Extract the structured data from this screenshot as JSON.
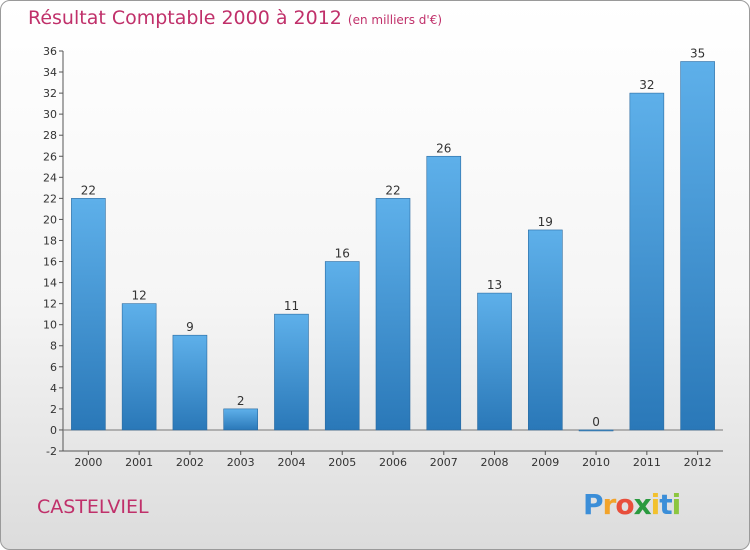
{
  "chart_data": {
    "type": "bar",
    "title": "Résultat Comptable 2000 à 2012",
    "subtitle": "(en milliers d'€)",
    "categories": [
      "2000",
      "2001",
      "2002",
      "2003",
      "2004",
      "2005",
      "2006",
      "2007",
      "2008",
      "2009",
      "2010",
      "2011",
      "2012"
    ],
    "values": [
      22,
      12,
      9,
      2,
      11,
      16,
      22,
      26,
      13,
      19,
      0,
      32,
      35
    ],
    "value_labels": [
      "22",
      "12",
      "9",
      "2",
      "11",
      "16",
      "22",
      "26",
      "13",
      "19",
      "0",
      "32",
      "35"
    ],
    "xlabel": "",
    "ylabel": "",
    "ylim": [
      -2,
      36
    ],
    "yticks": [
      -2,
      0,
      2,
      4,
      6,
      8,
      10,
      12,
      14,
      16,
      18,
      20,
      22,
      24,
      26,
      28,
      30,
      32,
      34,
      36
    ],
    "grid": false,
    "bar_color": "#3a8fd4"
  },
  "place_name": "CASTELVIEL",
  "logo": {
    "letters": [
      "P",
      "r",
      "o",
      "x",
      "i",
      "t",
      "i"
    ],
    "colors": [
      "#3b8ed8",
      "#f2a32a",
      "#e84e3b",
      "#2a9a3f",
      "#f2c12e",
      "#3b8ed8",
      "#8cc63f"
    ]
  }
}
